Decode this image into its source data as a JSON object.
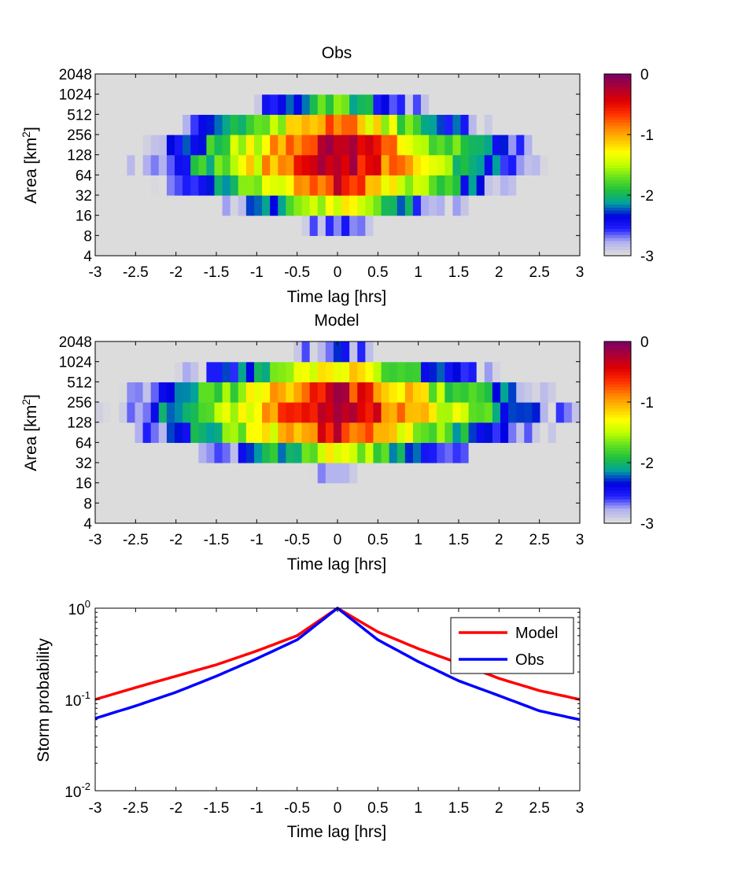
{
  "chart_data": [
    {
      "type": "heatmap",
      "title": "Obs",
      "xlabel": "Time lag [hrs]",
      "ylabel": "Area [km",
      "ylabel_sup": "2",
      "ylabel_close": "]",
      "xlim": [
        -3,
        3
      ],
      "x_ticks": [
        "-3",
        "-2.5",
        "-2",
        "-1.5",
        "-1",
        "-0.5",
        "0",
        "0.5",
        "1",
        "1.5",
        "2",
        "2.5",
        "3"
      ],
      "y_ticks": [
        "4",
        "8",
        "16",
        "32",
        "64",
        "128",
        "256",
        "512",
        "1024",
        "2048"
      ],
      "n_time_bins": 61,
      "area_bins_log2": [
        2.5,
        3.5,
        4.5,
        5.5,
        6.5,
        7.5,
        8.5,
        9.5,
        10.5
      ],
      "value_model": {
        "description": "log10 probability vs lag and area",
        "peak_value": -0.05,
        "peak_log2_area": 6.8,
        "time_scale_hrs": 0.85,
        "area_scale_log2": 2.0,
        "floor_value": -3
      },
      "colorbar": {
        "range": [
          -3,
          0
        ],
        "ticks": [
          "0",
          "-1",
          "-2",
          "-3"
        ],
        "colors": [
          "#dcdcdc",
          "#b0b0f0",
          "#2020ff",
          "#0000e0",
          "#00a0a0",
          "#20c040",
          "#60e020",
          "#c0ff00",
          "#ffff00",
          "#ffc000",
          "#ff8000",
          "#ff3000",
          "#e00000",
          "#b00030",
          "#800060"
        ]
      }
    },
    {
      "type": "heatmap",
      "title": "Model",
      "xlabel": "Time lag [hrs]",
      "ylabel": "Area [km",
      "ylabel_sup": "2",
      "ylabel_close": "]",
      "xlim": [
        -3,
        3
      ],
      "x_ticks": [
        "-3",
        "-2.5",
        "-2",
        "-1.5",
        "-1",
        "-0.5",
        "0",
        "0.5",
        "1",
        "1.5",
        "2",
        "2.5",
        "3"
      ],
      "y_ticks": [
        "4",
        "8",
        "16",
        "32",
        "64",
        "128",
        "256",
        "512",
        "1024",
        "2048"
      ],
      "n_time_bins": 61,
      "area_bins_log2": [
        2.5,
        3.5,
        4.5,
        5.5,
        6.5,
        7.5,
        8.5,
        9.5,
        10.5
      ],
      "value_model": {
        "description": "log10 probability vs lag and area",
        "peak_value": -0.1,
        "peak_log2_area": 7.6,
        "time_scale_hrs": 1.0,
        "area_scale_log2": 1.8,
        "floor_value": -3
      },
      "colorbar": {
        "range": [
          -3,
          0
        ],
        "ticks": [
          "0",
          "-1",
          "-2",
          "-3"
        ],
        "colors": [
          "#dcdcdc",
          "#b0b0f0",
          "#2020ff",
          "#0000e0",
          "#00a0a0",
          "#20c040",
          "#60e020",
          "#c0ff00",
          "#ffff00",
          "#ffc000",
          "#ff8000",
          "#ff3000",
          "#e00000",
          "#b00030",
          "#800060"
        ]
      }
    },
    {
      "type": "line",
      "title": "",
      "xlabel": "Time lag [hrs]",
      "ylabel": "Storm probability",
      "xlim": [
        -3,
        3
      ],
      "ylim": [
        0.01,
        1
      ],
      "yscale": "log",
      "x_ticks": [
        "-3",
        "-2.5",
        "-2",
        "-1.5",
        "-1",
        "-0.5",
        "0",
        "0.5",
        "1",
        "1.5",
        "2",
        "2.5",
        "3"
      ],
      "y_ticks": [
        {
          "base": "10",
          "exp": "0"
        },
        {
          "base": "10",
          "exp": "-1"
        },
        {
          "base": "10",
          "exp": "-2"
        }
      ],
      "legend_position": "top-right",
      "x": [
        -3,
        -2.5,
        -2,
        -1.5,
        -1,
        -0.5,
        0,
        0.5,
        1,
        1.5,
        2,
        2.5,
        3
      ],
      "series": [
        {
          "name": "Model",
          "color": "#ff0000",
          "values": [
            0.1,
            0.135,
            0.18,
            0.24,
            0.34,
            0.5,
            1.0,
            0.55,
            0.36,
            0.25,
            0.17,
            0.125,
            0.1
          ]
        },
        {
          "name": "Obs",
          "color": "#0000ff",
          "values": [
            0.062,
            0.085,
            0.12,
            0.18,
            0.28,
            0.45,
            1.0,
            0.45,
            0.26,
            0.16,
            0.11,
            0.075,
            0.06
          ]
        }
      ]
    }
  ]
}
